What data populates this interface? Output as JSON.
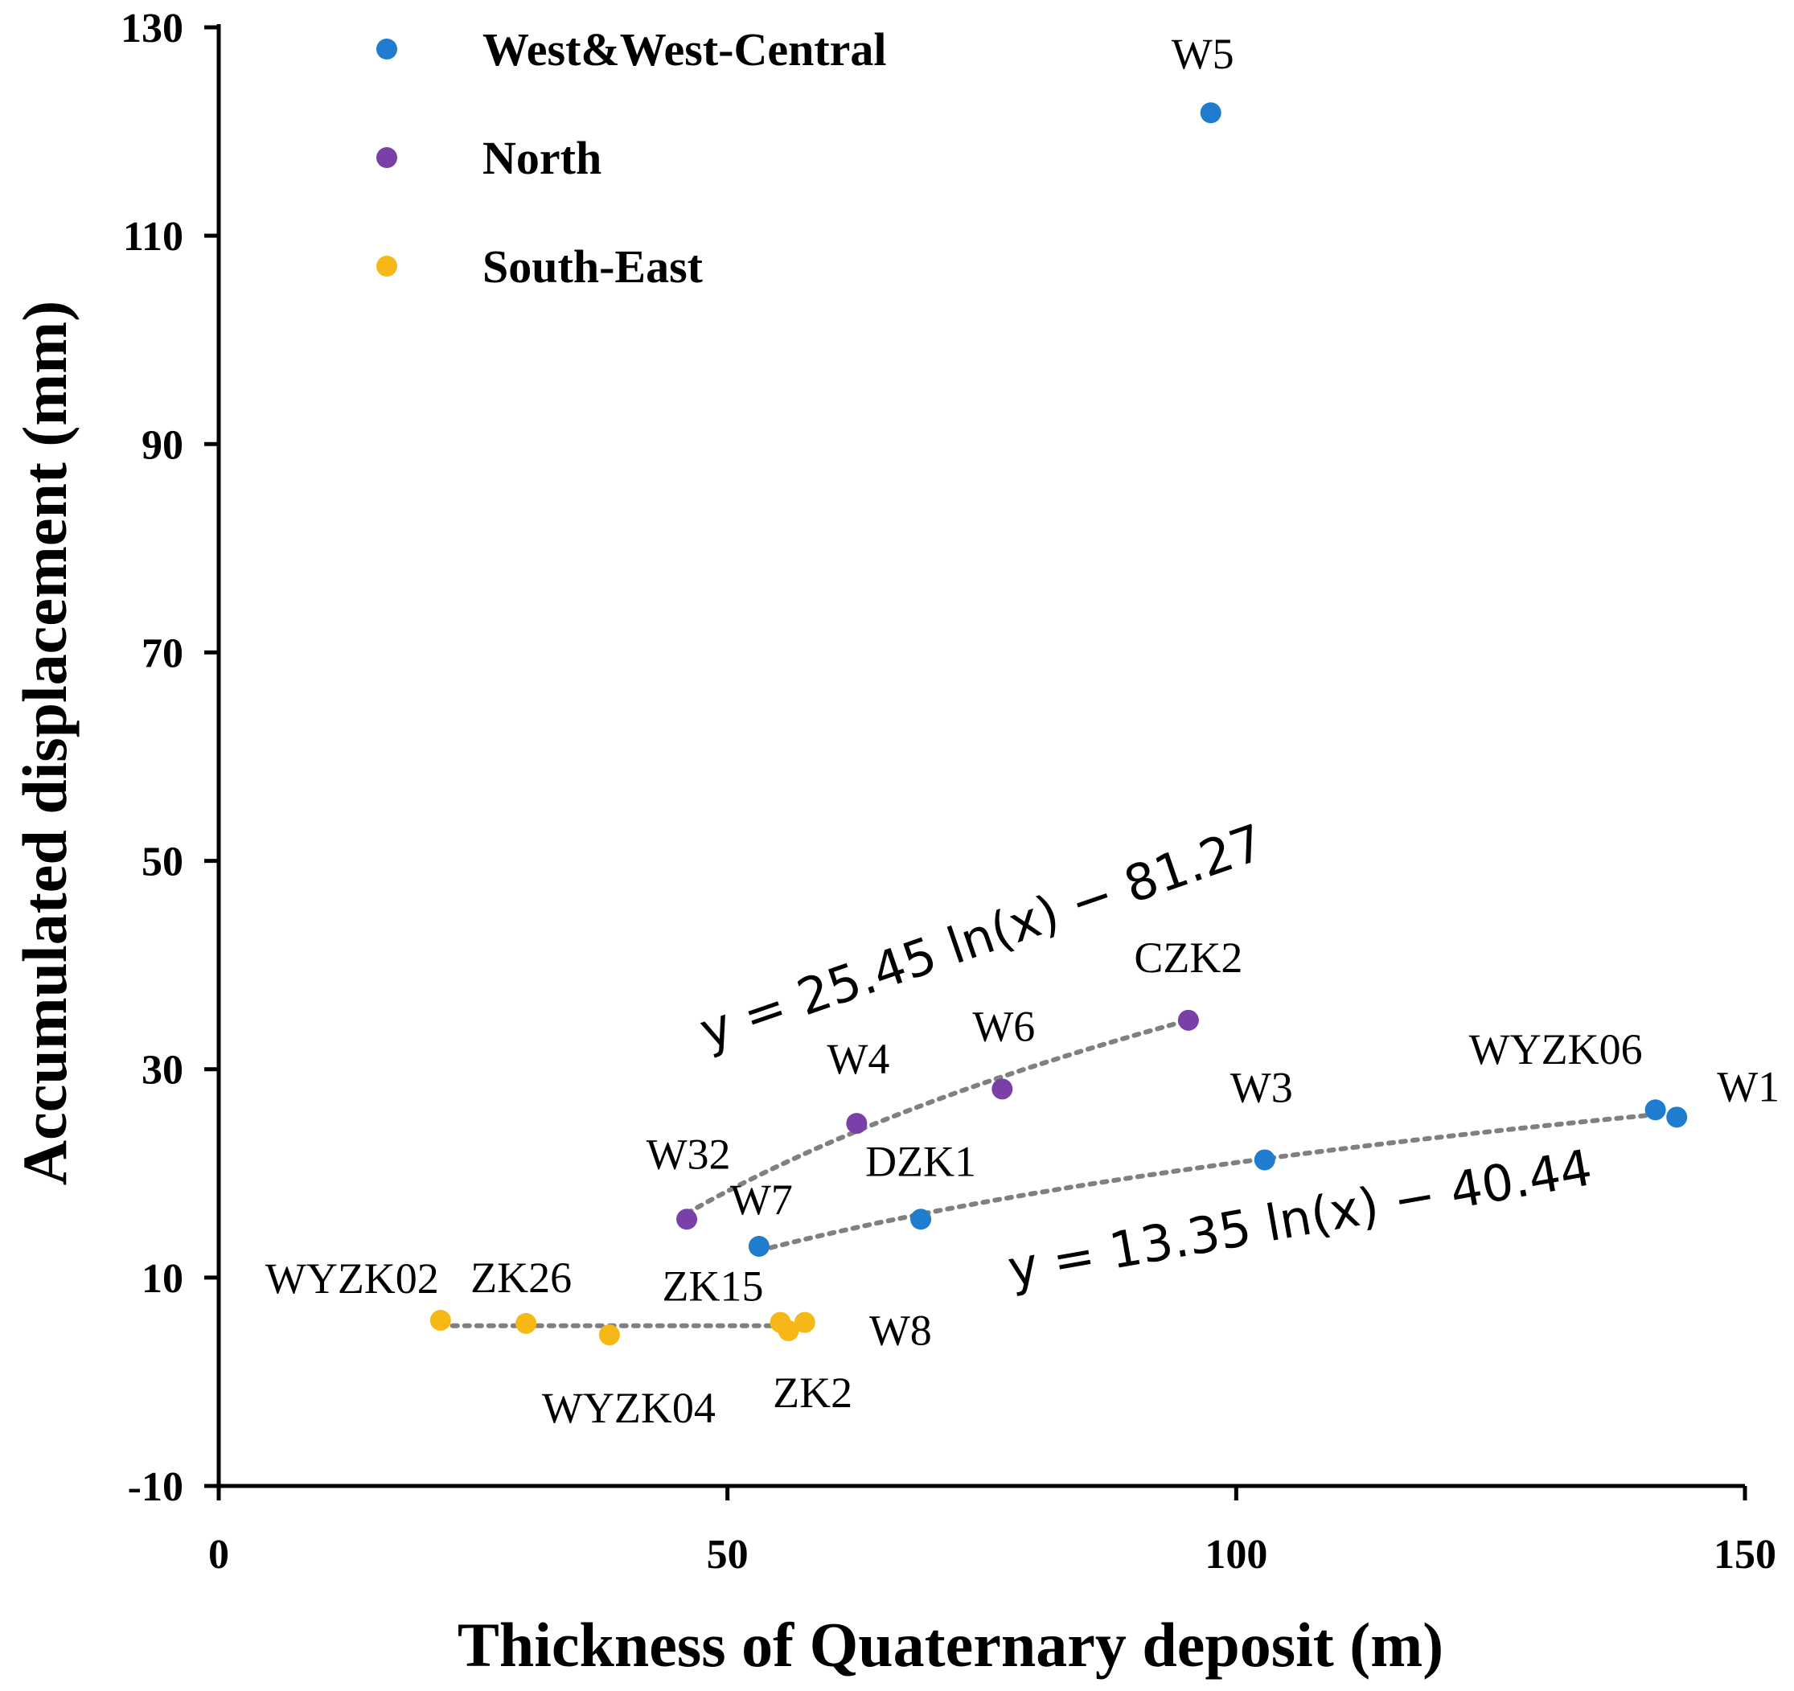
{
  "chart_data": {
    "type": "scatter",
    "xlabel": "Thickness of Quaternary deposit (m)",
    "ylabel": "Accumulated displacement (mm)",
    "xlim": [
      0,
      150
    ],
    "ylim": [
      -10,
      130
    ],
    "xticks": [
      0,
      50,
      100,
      150
    ],
    "yticks": [
      -10,
      10,
      30,
      50,
      70,
      90,
      110,
      130
    ],
    "grid": false,
    "legend_position": "top-left",
    "series": [
      {
        "name": "West&West-Central",
        "color": "#1f7ccf",
        "points": [
          {
            "label": "W5",
            "x": 97.5,
            "y": 121.8
          },
          {
            "label": "W7",
            "x": 53.1,
            "y": 13.0
          },
          {
            "label": "DZK1",
            "x": 69.0,
            "y": 15.6
          },
          {
            "label": "W3",
            "x": 102.8,
            "y": 21.3
          },
          {
            "label": "WYZK06",
            "x": 141.2,
            "y": 26.1
          },
          {
            "label": "W1",
            "x": 143.3,
            "y": 25.4
          }
        ],
        "trendline": {
          "equation": "y = 13.35 ln(x) − 40.44",
          "a": 13.35,
          "b": -40.44,
          "x_range": [
            53.1,
            141.2
          ]
        }
      },
      {
        "name": "North",
        "color": "#7b3fa8",
        "points": [
          {
            "label": "W32",
            "x": 46.0,
            "y": 15.6
          },
          {
            "label": "W4",
            "x": 62.7,
            "y": 24.8
          },
          {
            "label": "W6",
            "x": 77.0,
            "y": 28.1
          },
          {
            "label": "CZK2",
            "x": 95.3,
            "y": 34.7
          }
        ],
        "trendline": {
          "equation": "y = 25.45 ln(x) − 81.27",
          "a": 25.45,
          "b": -81.27,
          "x_range": [
            46.0,
            95.3
          ]
        }
      },
      {
        "name": "South-East",
        "color": "#f6b816",
        "points": [
          {
            "label": "WYZK02",
            "x": 21.8,
            "y": 5.9
          },
          {
            "label": "ZK26",
            "x": 30.2,
            "y": 5.6
          },
          {
            "label": "WYZK04",
            "x": 38.4,
            "y": 4.5
          },
          {
            "label": "ZK15",
            "x": 55.2,
            "y": 5.7
          },
          {
            "label": "ZK2",
            "x": 56.0,
            "y": 4.9
          },
          {
            "label": "W8",
            "x": 57.6,
            "y": 5.7
          }
        ],
        "trendline": {
          "type": "flat",
          "x_range": [
            21.8,
            57.6
          ]
        }
      }
    ]
  }
}
